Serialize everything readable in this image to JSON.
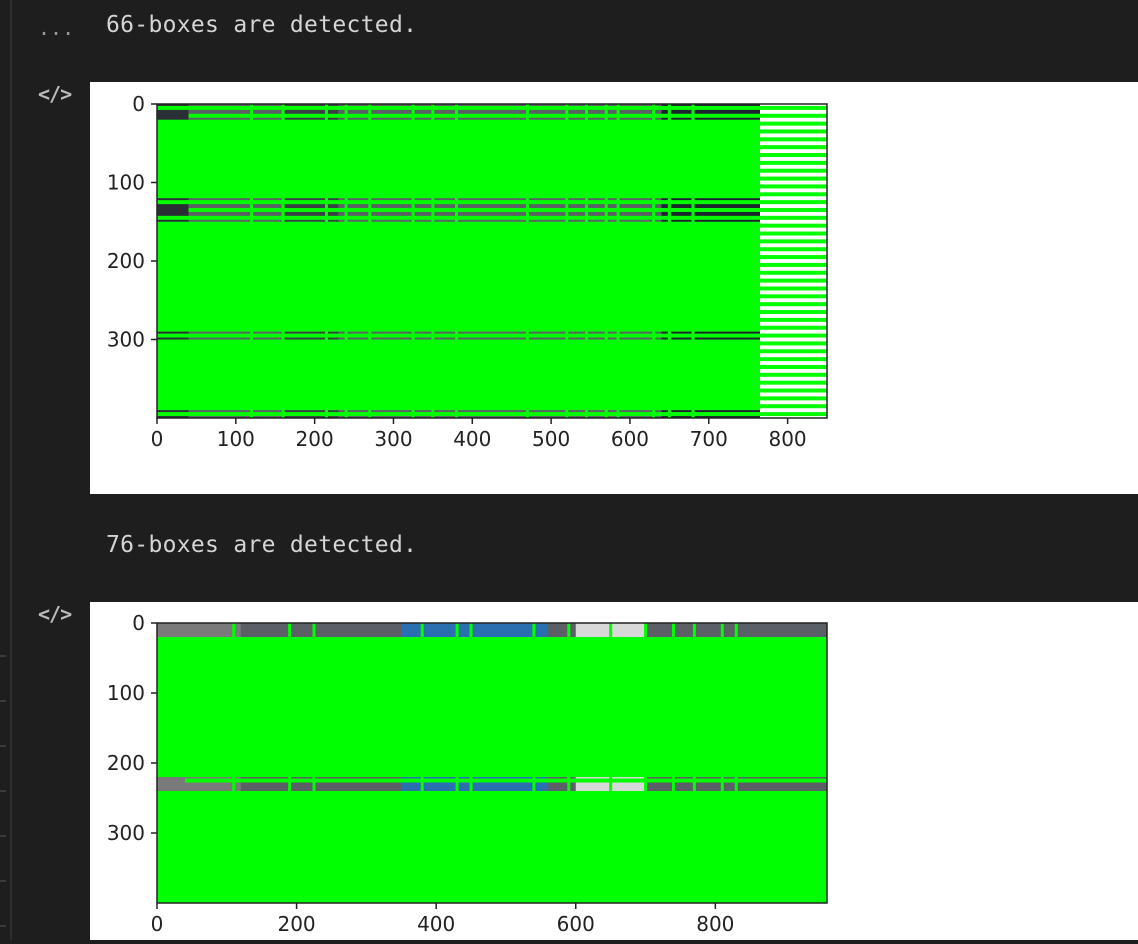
{
  "cells": [
    {
      "prompt": "...",
      "stdout": "66-boxes are detected.",
      "output_icon": "code-brackets-icon",
      "chart_data": {
        "type": "image",
        "title": "",
        "xlabel": "",
        "ylabel": "",
        "xlim": [
          0,
          850
        ],
        "ylim": [
          400,
          0
        ],
        "xticks": [
          0,
          100,
          200,
          300,
          400,
          500,
          600,
          700,
          800
        ],
        "yticks": [
          0,
          100,
          200,
          300
        ],
        "image_width": 765,
        "image_height": 400,
        "box_color": "#00ff00",
        "stripe_rows": [
          5,
          15,
          25,
          35,
          45,
          55,
          65,
          75,
          85,
          95,
          105,
          115,
          125,
          135,
          145,
          155,
          165,
          175,
          185,
          195,
          205,
          215,
          225,
          235,
          245,
          255,
          265,
          275,
          285,
          295,
          305,
          315,
          325,
          335,
          345,
          355,
          365,
          375,
          385,
          395
        ],
        "vline_cols": [
          120,
          160,
          215,
          240,
          270,
          325,
          350,
          380,
          470,
          520,
          545,
          570,
          585,
          630,
          650,
          680
        ]
      }
    },
    {
      "prompt": "",
      "stdout": "76-boxes are detected.",
      "output_icon": "code-brackets-icon",
      "chart_data": {
        "type": "image",
        "title": "",
        "xlabel": "",
        "ylabel": "",
        "xlim": [
          0,
          960
        ],
        "ylim": [
          400,
          0
        ],
        "xticks": [
          0,
          200,
          400,
          600,
          800
        ],
        "yticks": [
          0,
          100,
          200,
          300
        ],
        "image_width": 960,
        "image_height": 400,
        "box_color": "#00ff00",
        "stripe_rows": [
          25,
          45,
          65,
          75,
          85,
          95,
          105,
          115,
          125,
          135,
          145,
          165,
          205,
          225,
          245,
          255,
          265,
          275,
          285,
          295,
          305,
          315,
          325,
          335,
          345,
          355,
          365,
          375,
          385,
          395
        ],
        "vline_cols": [
          110,
          190,
          225,
          380,
          430,
          450,
          540,
          590,
          650,
          700,
          740,
          770,
          810,
          830
        ]
      }
    }
  ]
}
